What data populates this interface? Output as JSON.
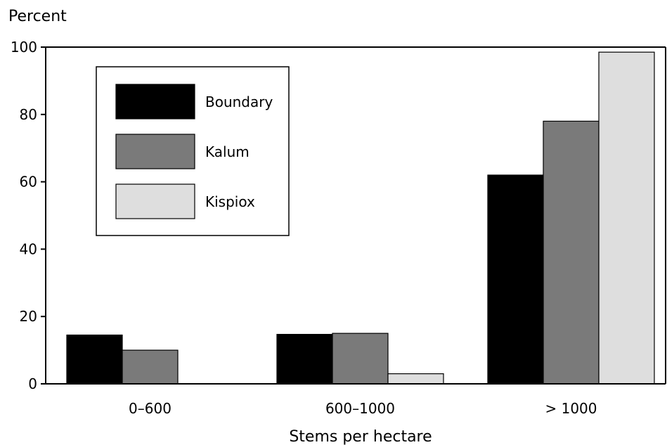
{
  "chart_data": {
    "type": "bar",
    "ylabel": "Percent",
    "xlabel": "Stems per hectare",
    "categories": [
      "0–600",
      "600–1000",
      "> 1000"
    ],
    "ylim": [
      0,
      100
    ],
    "yticks": [
      "0",
      "20",
      "40",
      "60",
      "80",
      "100"
    ],
    "series": [
      {
        "name": "Boundary",
        "color": "#000000",
        "values": [
          14.5,
          14.7,
          62
        ]
      },
      {
        "name": "Kalum",
        "color": "#7a7a7a",
        "values": [
          10,
          15,
          78
        ]
      },
      {
        "name": "Kispiox",
        "color": "#dedede",
        "values": [
          0,
          3,
          98.5
        ]
      }
    ],
    "legend_position": "top-left",
    "grid": false
  }
}
